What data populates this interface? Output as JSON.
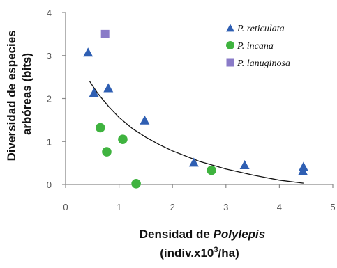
{
  "chart_data": {
    "type": "scatter",
    "title": "",
    "ylabel": {
      "line1": "Diversidad de especies",
      "line2": "arbóreas (bits)"
    },
    "xlabel": {
      "prefix": "Densidad de ",
      "italic": "Polylepis",
      "unit_before_sup": "(indiv.x10",
      "sup": "3",
      "unit_after_sup": "/ha)"
    },
    "xlim": [
      0,
      5
    ],
    "ylim": [
      0,
      4
    ],
    "x_ticks": [
      "0",
      "1",
      "2",
      "3",
      "4",
      "5"
    ],
    "y_ticks": [
      "0",
      "1",
      "2",
      "3",
      "4"
    ],
    "grid": false,
    "legend_position": "top-right",
    "series": [
      {
        "name": "P. reticulata",
        "marker": "triangle",
        "color": "#2f5fb3",
        "points": [
          {
            "x": 0.42,
            "y": 3.06
          },
          {
            "x": 0.53,
            "y": 2.12
          },
          {
            "x": 0.8,
            "y": 2.23
          },
          {
            "x": 1.48,
            "y": 1.48
          },
          {
            "x": 2.4,
            "y": 0.5
          },
          {
            "x": 3.35,
            "y": 0.44
          },
          {
            "x": 4.45,
            "y": 0.4
          },
          {
            "x": 4.44,
            "y": 0.3
          }
        ]
      },
      {
        "name": "P. incana",
        "marker": "circle",
        "color": "#3fb33f",
        "points": [
          {
            "x": 0.65,
            "y": 1.32
          },
          {
            "x": 0.77,
            "y": 0.76
          },
          {
            "x": 1.07,
            "y": 1.05
          },
          {
            "x": 1.32,
            "y": 0.02
          },
          {
            "x": 2.73,
            "y": 0.33
          }
        ]
      },
      {
        "name": "P. lanuginosa",
        "marker": "square",
        "color": "#8a7bc8",
        "points": [
          {
            "x": 0.74,
            "y": 3.5
          }
        ]
      }
    ],
    "trendline": {
      "color": "#111111",
      "points": [
        {
          "x": 0.45,
          "y": 2.4
        },
        {
          "x": 0.6,
          "y": 2.12
        },
        {
          "x": 0.8,
          "y": 1.82
        },
        {
          "x": 1.0,
          "y": 1.56
        },
        {
          "x": 1.25,
          "y": 1.3
        },
        {
          "x": 1.5,
          "y": 1.1
        },
        {
          "x": 1.75,
          "y": 0.93
        },
        {
          "x": 2.0,
          "y": 0.78
        },
        {
          "x": 2.5,
          "y": 0.54
        },
        {
          "x": 3.0,
          "y": 0.36
        },
        {
          "x": 3.5,
          "y": 0.22
        },
        {
          "x": 4.0,
          "y": 0.1
        },
        {
          "x": 4.45,
          "y": 0.03
        }
      ]
    },
    "colors": {
      "axis": "#8a8a8a",
      "tick_text": "#555555",
      "title_text": "#111111"
    }
  }
}
